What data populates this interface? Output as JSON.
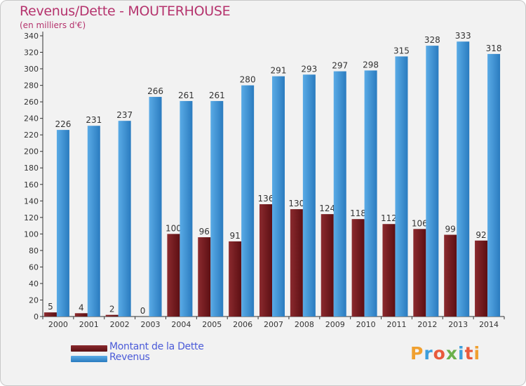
{
  "colors": {
    "debt": "#8b2a2e",
    "debt_dark": "#5c0f13",
    "revenue": "#5aabe6",
    "revenue_dark": "#2a7bbf",
    "title": "#b5336d",
    "legend_text": "#4b5bd8"
  },
  "legend": [
    {
      "label": "Montant de la Dette",
      "color": "#8b2a2e"
    },
    {
      "label": "Revenus",
      "color": "#5aabe6"
    }
  ],
  "logo": {
    "text": "Proxiti",
    "letters": [
      "P",
      "r",
      "o",
      "x",
      "i",
      "t",
      "i"
    ],
    "colors": [
      "#f0a030",
      "#3c9edc",
      "#e85a3c",
      "#6ab04c",
      "#3c9edc",
      "#e85a3c",
      "#f0a030"
    ]
  },
  "chart_data": {
    "type": "bar",
    "title": "Revenus/Dette - MOUTERHOUSE",
    "subtitle": "(en milliers d'€)",
    "categories": [
      "2000",
      "2001",
      "2002",
      "2003",
      "2004",
      "2005",
      "2006",
      "2007",
      "2008",
      "2009",
      "2010",
      "2011",
      "2012",
      "2013",
      "2014"
    ],
    "series": [
      {
        "name": "Montant de la Dette",
        "values": [
          5,
          4,
          2,
          0,
          100,
          96,
          91,
          136,
          130,
          124,
          118,
          112,
          106,
          99,
          92
        ]
      },
      {
        "name": "Revenus",
        "values": [
          226,
          231,
          237,
          266,
          261,
          261,
          280,
          291,
          293,
          297,
          298,
          315,
          328,
          333,
          318
        ]
      }
    ],
    "ylim": [
      0,
      340
    ],
    "yticks": [
      0,
      20,
      40,
      60,
      80,
      100,
      120,
      140,
      160,
      180,
      200,
      220,
      240,
      260,
      280,
      300,
      320,
      340
    ],
    "grid": false,
    "legend_position": "bottom-left"
  }
}
